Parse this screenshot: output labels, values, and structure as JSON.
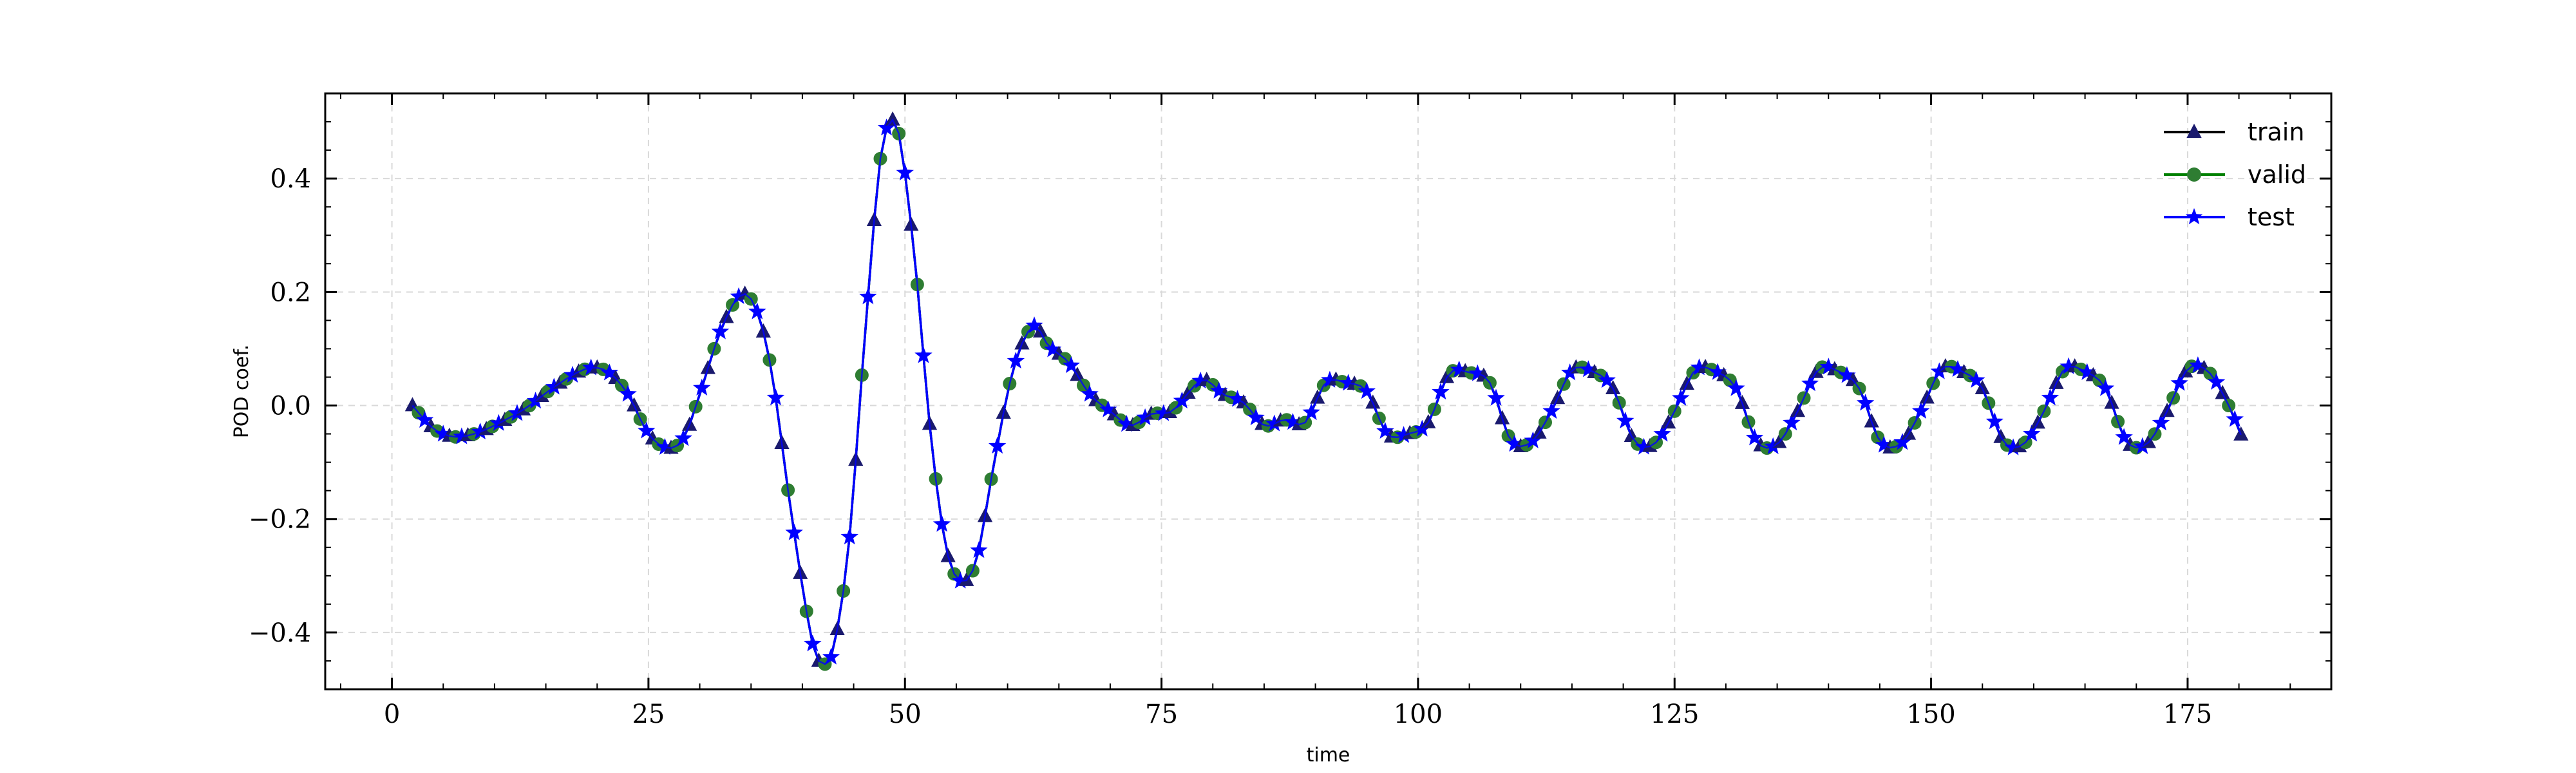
{
  "chart_data": {
    "type": "line",
    "title": "",
    "xlabel": "time",
    "ylabel": "POD coef.",
    "xlim": [
      -6.5,
      189
    ],
    "ylim": [
      -0.5,
      0.55
    ],
    "xticks": [
      0,
      25,
      50,
      75,
      100,
      125,
      150,
      175
    ],
    "yticks": [
      -0.4,
      -0.2,
      0.0,
      0.2,
      0.4
    ],
    "xtick_labels": [
      "0",
      "25",
      "50",
      "75",
      "100",
      "125",
      "150",
      "175"
    ],
    "ytick_labels": [
      "−0.4",
      "−0.2",
      "0.0",
      "0.2",
      "0.4"
    ],
    "grid": true,
    "legend_position": "top-right",
    "x_step": 0.6,
    "series": [
      {
        "name": "train",
        "color": "#000000",
        "marker": "triangle",
        "marker_fill": "#1a1a6e"
      },
      {
        "name": "valid",
        "color": "#008000",
        "marker": "circle",
        "marker_fill": "#2e7d32"
      },
      {
        "name": "test",
        "color": "#0000ff",
        "marker": "star",
        "marker_fill": "#0000ff"
      }
    ],
    "curve_keypoints": [
      [
        2,
        0.0
      ],
      [
        4,
        -0.04
      ],
      [
        6,
        -0.055
      ],
      [
        8,
        -0.05
      ],
      [
        10,
        -0.035
      ],
      [
        13,
        -0.005
      ],
      [
        16,
        0.035
      ],
      [
        19,
        0.065
      ],
      [
        21,
        0.06
      ],
      [
        23,
        0.02
      ],
      [
        25,
        -0.05
      ],
      [
        27,
        -0.075
      ],
      [
        28.5,
        -0.055
      ],
      [
        30,
        0.02
      ],
      [
        32,
        0.13
      ],
      [
        34,
        0.195
      ],
      [
        35.5,
        0.17
      ],
      [
        37,
        0.06
      ],
      [
        39,
        -0.2
      ],
      [
        41,
        -0.42
      ],
      [
        42,
        -0.455
      ],
      [
        43,
        -0.43
      ],
      [
        44.5,
        -0.25
      ],
      [
        46,
        0.1
      ],
      [
        47.5,
        0.42
      ],
      [
        48.5,
        0.5
      ],
      [
        49.5,
        0.47
      ],
      [
        51,
        0.25
      ],
      [
        52.5,
        -0.05
      ],
      [
        54,
        -0.25
      ],
      [
        55.5,
        -0.31
      ],
      [
        57,
        -0.27
      ],
      [
        58.5,
        -0.12
      ],
      [
        60.5,
        0.06
      ],
      [
        62.5,
        0.14
      ],
      [
        64,
        0.105
      ],
      [
        66,
        0.075
      ],
      [
        68,
        0.02
      ],
      [
        70,
        -0.01
      ],
      [
        72,
        -0.035
      ],
      [
        74,
        -0.015
      ],
      [
        76,
        -0.01
      ],
      [
        79,
        0.045
      ],
      [
        81,
        0.02
      ],
      [
        83,
        0.005
      ],
      [
        85,
        -0.035
      ],
      [
        87,
        -0.025
      ],
      [
        89,
        -0.03
      ],
      [
        91,
        0.04
      ],
      [
        93,
        0.04
      ],
      [
        95,
        0.025
      ],
      [
        97,
        -0.05
      ],
      [
        99,
        -0.05
      ],
      [
        101,
        -0.03
      ],
      [
        103,
        0.055
      ],
      [
        105,
        0.058
      ],
      [
        107,
        0.04
      ],
      [
        109,
        -0.06
      ],
      [
        111,
        -0.065
      ],
      [
        113,
        -0.01
      ],
      [
        115,
        0.062
      ],
      [
        117,
        0.06
      ],
      [
        119,
        0.03
      ],
      [
        121,
        -0.06
      ],
      [
        123,
        -0.068
      ],
      [
        125,
        -0.01
      ],
      [
        127,
        0.062
      ],
      [
        129,
        0.06
      ],
      [
        131,
        0.03
      ],
      [
        133,
        -0.063
      ],
      [
        135,
        -0.068
      ],
      [
        137,
        -0.01
      ],
      [
        139,
        0.063
      ],
      [
        141,
        0.06
      ],
      [
        143,
        0.03
      ],
      [
        145,
        -0.062
      ],
      [
        147,
        -0.068
      ],
      [
        149,
        -0.01
      ],
      [
        151,
        0.064
      ],
      [
        153,
        0.06
      ],
      [
        155,
        0.03
      ],
      [
        157,
        -0.062
      ],
      [
        159,
        -0.068
      ],
      [
        161,
        -0.01
      ],
      [
        163,
        0.064
      ],
      [
        165,
        0.06
      ],
      [
        167,
        0.03
      ],
      [
        169,
        -0.062
      ],
      [
        171,
        -0.068
      ],
      [
        173,
        -0.01
      ],
      [
        175,
        0.064
      ],
      [
        177,
        0.06
      ],
      [
        179,
        0.0
      ],
      [
        180.5,
        -0.065
      ]
    ]
  }
}
